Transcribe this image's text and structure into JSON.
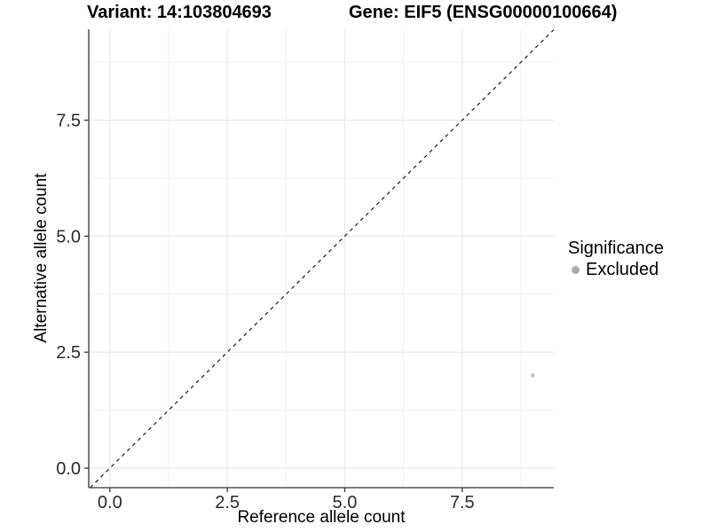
{
  "chart_data": {
    "type": "scatter",
    "titles": {
      "left": "Variant: 14:103804693",
      "right": "Gene: EIF5 (ENSG00000100664)"
    },
    "xlabel": "Reference allele count",
    "ylabel": "Alternative allele count",
    "xlim": [
      -0.45,
      9.45
    ],
    "ylim": [
      -0.42,
      9.46
    ],
    "x_ticks": {
      "values": [
        0,
        2.5,
        5,
        7.5
      ],
      "labels": [
        "0.0",
        "2.5",
        "5.0",
        "7.5"
      ],
      "minor": [
        1.25,
        3.75,
        6.25,
        8.75
      ]
    },
    "y_ticks": {
      "values": [
        0,
        2.5,
        5,
        7.5
      ],
      "labels": [
        "0.0",
        "2.5",
        "5.0",
        "7.5"
      ],
      "minor": [
        1.25,
        3.75,
        6.25,
        8.75
      ]
    },
    "grid": {
      "major_color": "#e8e8e8",
      "minor_color": "#f1f1f1",
      "background": "#ffffff"
    },
    "axis_color": "#333333",
    "tick_label_color": "#2b2b2b",
    "reference_line": {
      "type": "identity",
      "slope": 1,
      "intercept": 0,
      "style": "dashed",
      "color": "#1a1a1a"
    },
    "series": [
      {
        "name": "Excluded",
        "point_color": "#c6c6c6",
        "point_radius": 2.4,
        "points": [
          {
            "x": 9,
            "y": 2
          }
        ]
      }
    ],
    "legend": {
      "title": "Significance",
      "position": "right",
      "items": [
        {
          "label": "Excluded",
          "dot_color": "#ababab"
        }
      ]
    }
  }
}
